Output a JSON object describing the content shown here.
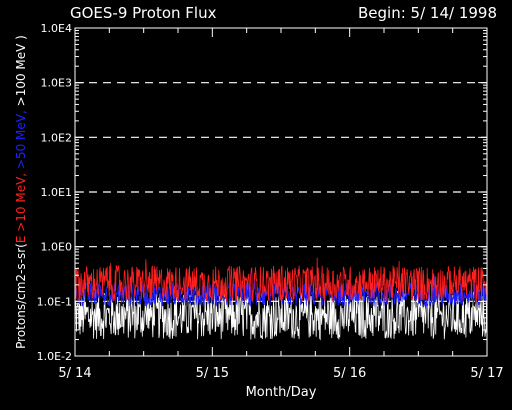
{
  "chart_data": {
    "type": "line",
    "title": "GOES-9 Proton Flux",
    "begin_label": "Begin: 5/ 14/ 1998",
    "xlabel": "Month/Day",
    "ylabel_parts": [
      {
        "text": "Protons/cm2-s-sr(",
        "color": "#ffffff"
      },
      {
        "text": "E >10 MeV, ",
        "color": "#ff2020"
      },
      {
        "text": ">50 MeV, ",
        "color": "#2020ff"
      },
      {
        "text": ">100 MeV )",
        "color": "#ffffff"
      }
    ],
    "x_ticks": [
      "5/ 14",
      "5/ 15",
      "5/ 16",
      "5/ 17"
    ],
    "x_range_days": [
      0,
      3
    ],
    "y_scale": "log",
    "y_ticks": [
      "1.0E-2",
      "1.0E-1",
      "1.0E0",
      "1.0E1",
      "1.0E2",
      "1.0E3",
      "1.0E4"
    ],
    "ylim": [
      0.01,
      10000
    ],
    "grid": "dashed horizontal at each decade",
    "series": [
      {
        "name": "E >10 MeV",
        "color": "#ff2020",
        "typical_value": 0.2,
        "noise_range": [
          0.1,
          0.45
        ]
      },
      {
        "name": ">50 MeV",
        "color": "#2020ff",
        "typical_value": 0.13,
        "noise_range": [
          0.08,
          0.22
        ]
      },
      {
        "name": ">100 MeV",
        "color": "#ffffff",
        "typical_value": 0.06,
        "noise_range": [
          0.02,
          0.14
        ]
      }
    ]
  }
}
